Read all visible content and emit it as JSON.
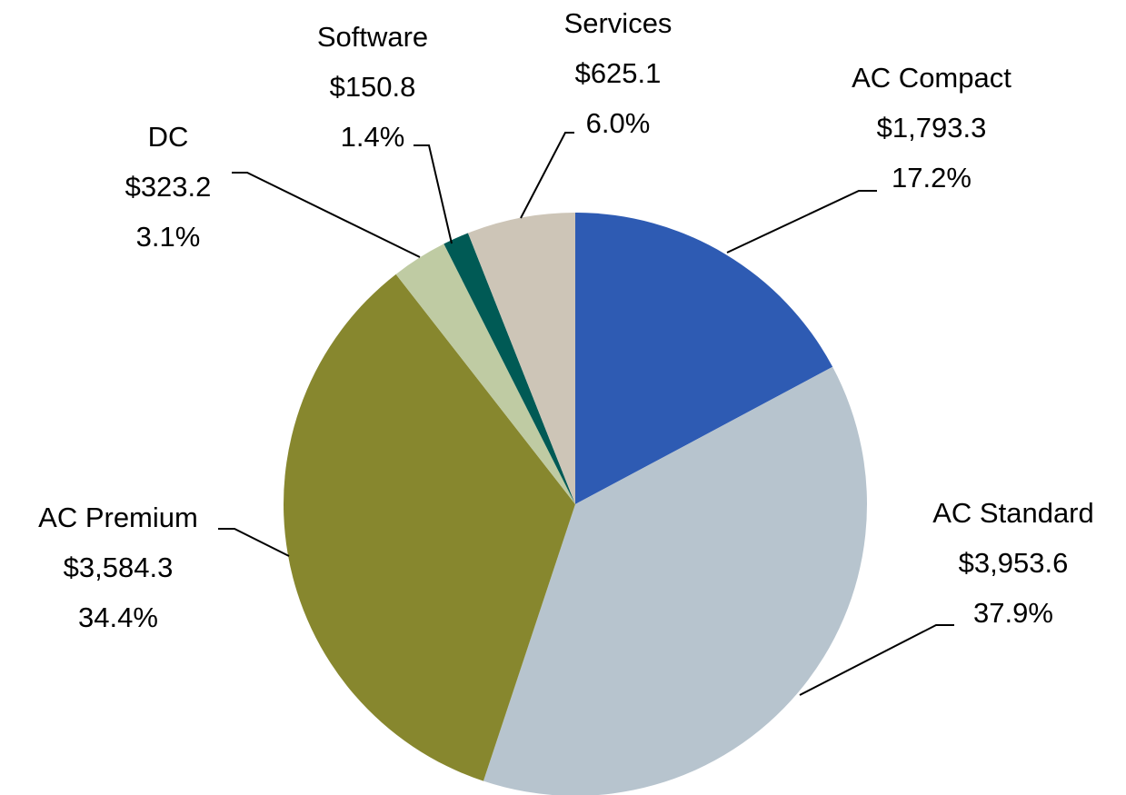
{
  "chart_data": {
    "type": "pie",
    "categories": [
      "AC Compact",
      "AC Standard",
      "AC Premium",
      "DC",
      "Software",
      "Services"
    ],
    "values": [
      1793.3,
      3953.6,
      3584.3,
      323.2,
      150.8,
      625.1
    ],
    "value_labels": [
      "$1,793.3",
      "$3,953.6",
      "$3,584.3",
      "$323.2",
      "$150.8",
      "$625.1"
    ],
    "percents": [
      17.2,
      37.9,
      34.4,
      3.1,
      1.4,
      6.0
    ],
    "percent_labels": [
      "17.2%",
      "37.9%",
      "34.4%",
      "3.1%",
      "1.4%",
      "6.0%"
    ],
    "colors": [
      "#2e5bb3",
      "#b7c4ce",
      "#87872e",
      "#bfcba3",
      "#005a55",
      "#cdc5b7"
    ]
  }
}
